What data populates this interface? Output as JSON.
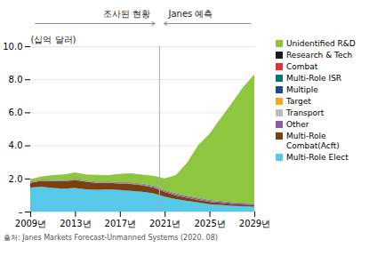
{
  "chart_data": {
    "type": "area",
    "stacked": true,
    "x": [
      2009,
      2010,
      2011,
      2012,
      2013,
      2014,
      2015,
      2016,
      2017,
      2018,
      2019,
      2020,
      2021,
      2022,
      2023,
      2024,
      2025,
      2026,
      2027,
      2028,
      2029
    ],
    "series": [
      {
        "name": "Multi-Role Elect",
        "color": "#56C8E8",
        "values": [
          1.45,
          1.5,
          1.42,
          1.38,
          1.42,
          1.35,
          1.32,
          1.35,
          1.3,
          1.25,
          1.2,
          1.1,
          0.9,
          0.75,
          0.65,
          0.55,
          0.45,
          0.4,
          0.35,
          0.32,
          0.3
        ]
      },
      {
        "name": "Multi-Role Combat(Acft)",
        "color": "#7B3F10",
        "values": [
          0.28,
          0.35,
          0.42,
          0.45,
          0.48,
          0.45,
          0.4,
          0.38,
          0.4,
          0.42,
          0.38,
          0.35,
          0.28,
          0.22,
          0.18,
          0.15,
          0.13,
          0.12,
          0.11,
          0.1,
          0.09
        ]
      },
      {
        "name": "Other",
        "color": "#8B5CA0",
        "values": [
          0.02,
          0.02,
          0.02,
          0.02,
          0.02,
          0.02,
          0.03,
          0.03,
          0.03,
          0.04,
          0.05,
          0.06,
          0.07,
          0.08,
          0.08,
          0.08,
          0.07,
          0.07,
          0.06,
          0.06,
          0.05
        ]
      },
      {
        "name": "Transport",
        "color": "#BBBBBB",
        "values": [
          0.005,
          0.005,
          0.005,
          0.005,
          0.005,
          0.005,
          0.005,
          0.005,
          0.005,
          0.005,
          0.005,
          0.005,
          0.005,
          0.005,
          0.005,
          0.005,
          0.005,
          0.005,
          0.005,
          0.005,
          0.005
        ]
      },
      {
        "name": "Target",
        "color": "#F5A623",
        "values": [
          0.005,
          0.005,
          0.005,
          0.005,
          0.005,
          0.005,
          0.005,
          0.005,
          0.005,
          0.005,
          0.005,
          0.005,
          0.005,
          0.005,
          0.005,
          0.005,
          0.005,
          0.005,
          0.005,
          0.005,
          0.005
        ]
      },
      {
        "name": "Multiple",
        "color": "#1A4A8A",
        "values": [
          0.01,
          0.01,
          0.01,
          0.01,
          0.01,
          0.01,
          0.01,
          0.01,
          0.01,
          0.01,
          0.01,
          0.01,
          0.01,
          0.01,
          0.01,
          0.01,
          0.01,
          0.01,
          0.01,
          0.01,
          0.01
        ]
      },
      {
        "name": "Multi-Role ISR",
        "color": "#0E7070",
        "values": [
          0.01,
          0.01,
          0.01,
          0.01,
          0.01,
          0.01,
          0.01,
          0.01,
          0.01,
          0.01,
          0.01,
          0.01,
          0.01,
          0.01,
          0.01,
          0.01,
          0.01,
          0.01,
          0.01,
          0.01,
          0.01
        ]
      },
      {
        "name": "Combat",
        "color": "#E03030",
        "values": [
          0.01,
          0.01,
          0.01,
          0.01,
          0.01,
          0.01,
          0.01,
          0.01,
          0.01,
          0.01,
          0.01,
          0.01,
          0.01,
          0.01,
          0.01,
          0.01,
          0.01,
          0.01,
          0.01,
          0.01,
          0.01
        ]
      },
      {
        "name": "Research & Tech",
        "color": "#1A1A1A",
        "values": [
          0.01,
          0.01,
          0.01,
          0.01,
          0.01,
          0.01,
          0.01,
          0.01,
          0.01,
          0.01,
          0.01,
          0.01,
          0.01,
          0.01,
          0.01,
          0.01,
          0.01,
          0.01,
          0.01,
          0.01,
          0.01
        ]
      },
      {
        "name": "Unidentified R&D",
        "color": "#8DC63F",
        "values": [
          0.15,
          0.2,
          0.3,
          0.35,
          0.4,
          0.38,
          0.42,
          0.4,
          0.5,
          0.55,
          0.55,
          0.6,
          0.7,
          1.1,
          2.0,
          3.2,
          4.0,
          5.0,
          6.0,
          7.0,
          7.8
        ]
      }
    ],
    "xlim": [
      2009,
      2029
    ],
    "xticks": [
      {
        "value": 2009,
        "label": "2009년"
      },
      {
        "value": 2013,
        "label": "2013년"
      },
      {
        "value": 2017,
        "label": "2017년"
      },
      {
        "value": 2021,
        "label": "2021년"
      },
      {
        "value": 2025,
        "label": "2025년"
      },
      {
        "value": 2029,
        "label": "2029년"
      }
    ],
    "ylim": [
      0,
      10.0
    ],
    "yticks": [
      {
        "value": 0,
        "label": "–"
      },
      {
        "value": 2.0,
        "label": "2.0"
      },
      {
        "value": 4.0,
        "label": "4.0"
      },
      {
        "value": 6.0,
        "label": "6.0"
      },
      {
        "value": 8.0,
        "label": "8.0"
      },
      {
        "value": 10.0,
        "label": "10.0"
      }
    ],
    "ylabel": "(십억 달러)",
    "grid": true,
    "legend": "right",
    "divider": {
      "x": 2020.5,
      "left_label": "조사된 현황",
      "right_label": "Janes 예측"
    },
    "caption": "출처: Janes Markets Forecast-Unmanned Systems (2020. 08)"
  }
}
